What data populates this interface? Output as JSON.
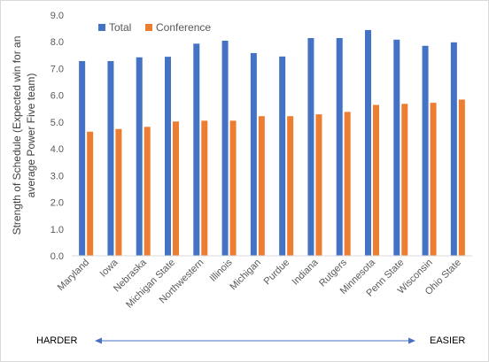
{
  "chart_data": {
    "type": "bar",
    "categories": [
      "Maryland",
      "Iowa",
      "Nebraska",
      "Michigan State",
      "Northwestern",
      "Illinois",
      "Michigan",
      "Purdue",
      "Indiana",
      "Rutgers",
      "Minnesota",
      "Penn State",
      "Wisconsin",
      "Ohio State"
    ],
    "series": [
      {
        "name": "Total",
        "color": "#4472C4",
        "values": [
          7.28,
          7.28,
          7.42,
          7.44,
          7.93,
          8.04,
          7.58,
          7.45,
          8.14,
          8.14,
          8.44,
          8.08,
          7.85,
          7.98
        ]
      },
      {
        "name": "Conference",
        "color": "#ED7D31",
        "values": [
          4.64,
          4.74,
          4.82,
          5.02,
          5.05,
          5.05,
          5.22,
          5.22,
          5.29,
          5.38,
          5.64,
          5.68,
          5.72,
          5.84
        ]
      }
    ],
    "title": "",
    "xlabel": "",
    "ylabel": "Strength of Schedule (Expected win for an average Power Five team)",
    "ylabel_lines": [
      "Strength of Schedule (Expected win for an",
      "average Power Five team)"
    ],
    "ylim": [
      0,
      9
    ],
    "yticks": [
      "0.0",
      "1.0",
      "2.0",
      "3.0",
      "4.0",
      "5.0",
      "6.0",
      "7.0",
      "8.0",
      "9.0"
    ],
    "grid": false,
    "legend_position": "top-left",
    "annotation": {
      "left": "HARDER",
      "right": "EASIER"
    }
  }
}
